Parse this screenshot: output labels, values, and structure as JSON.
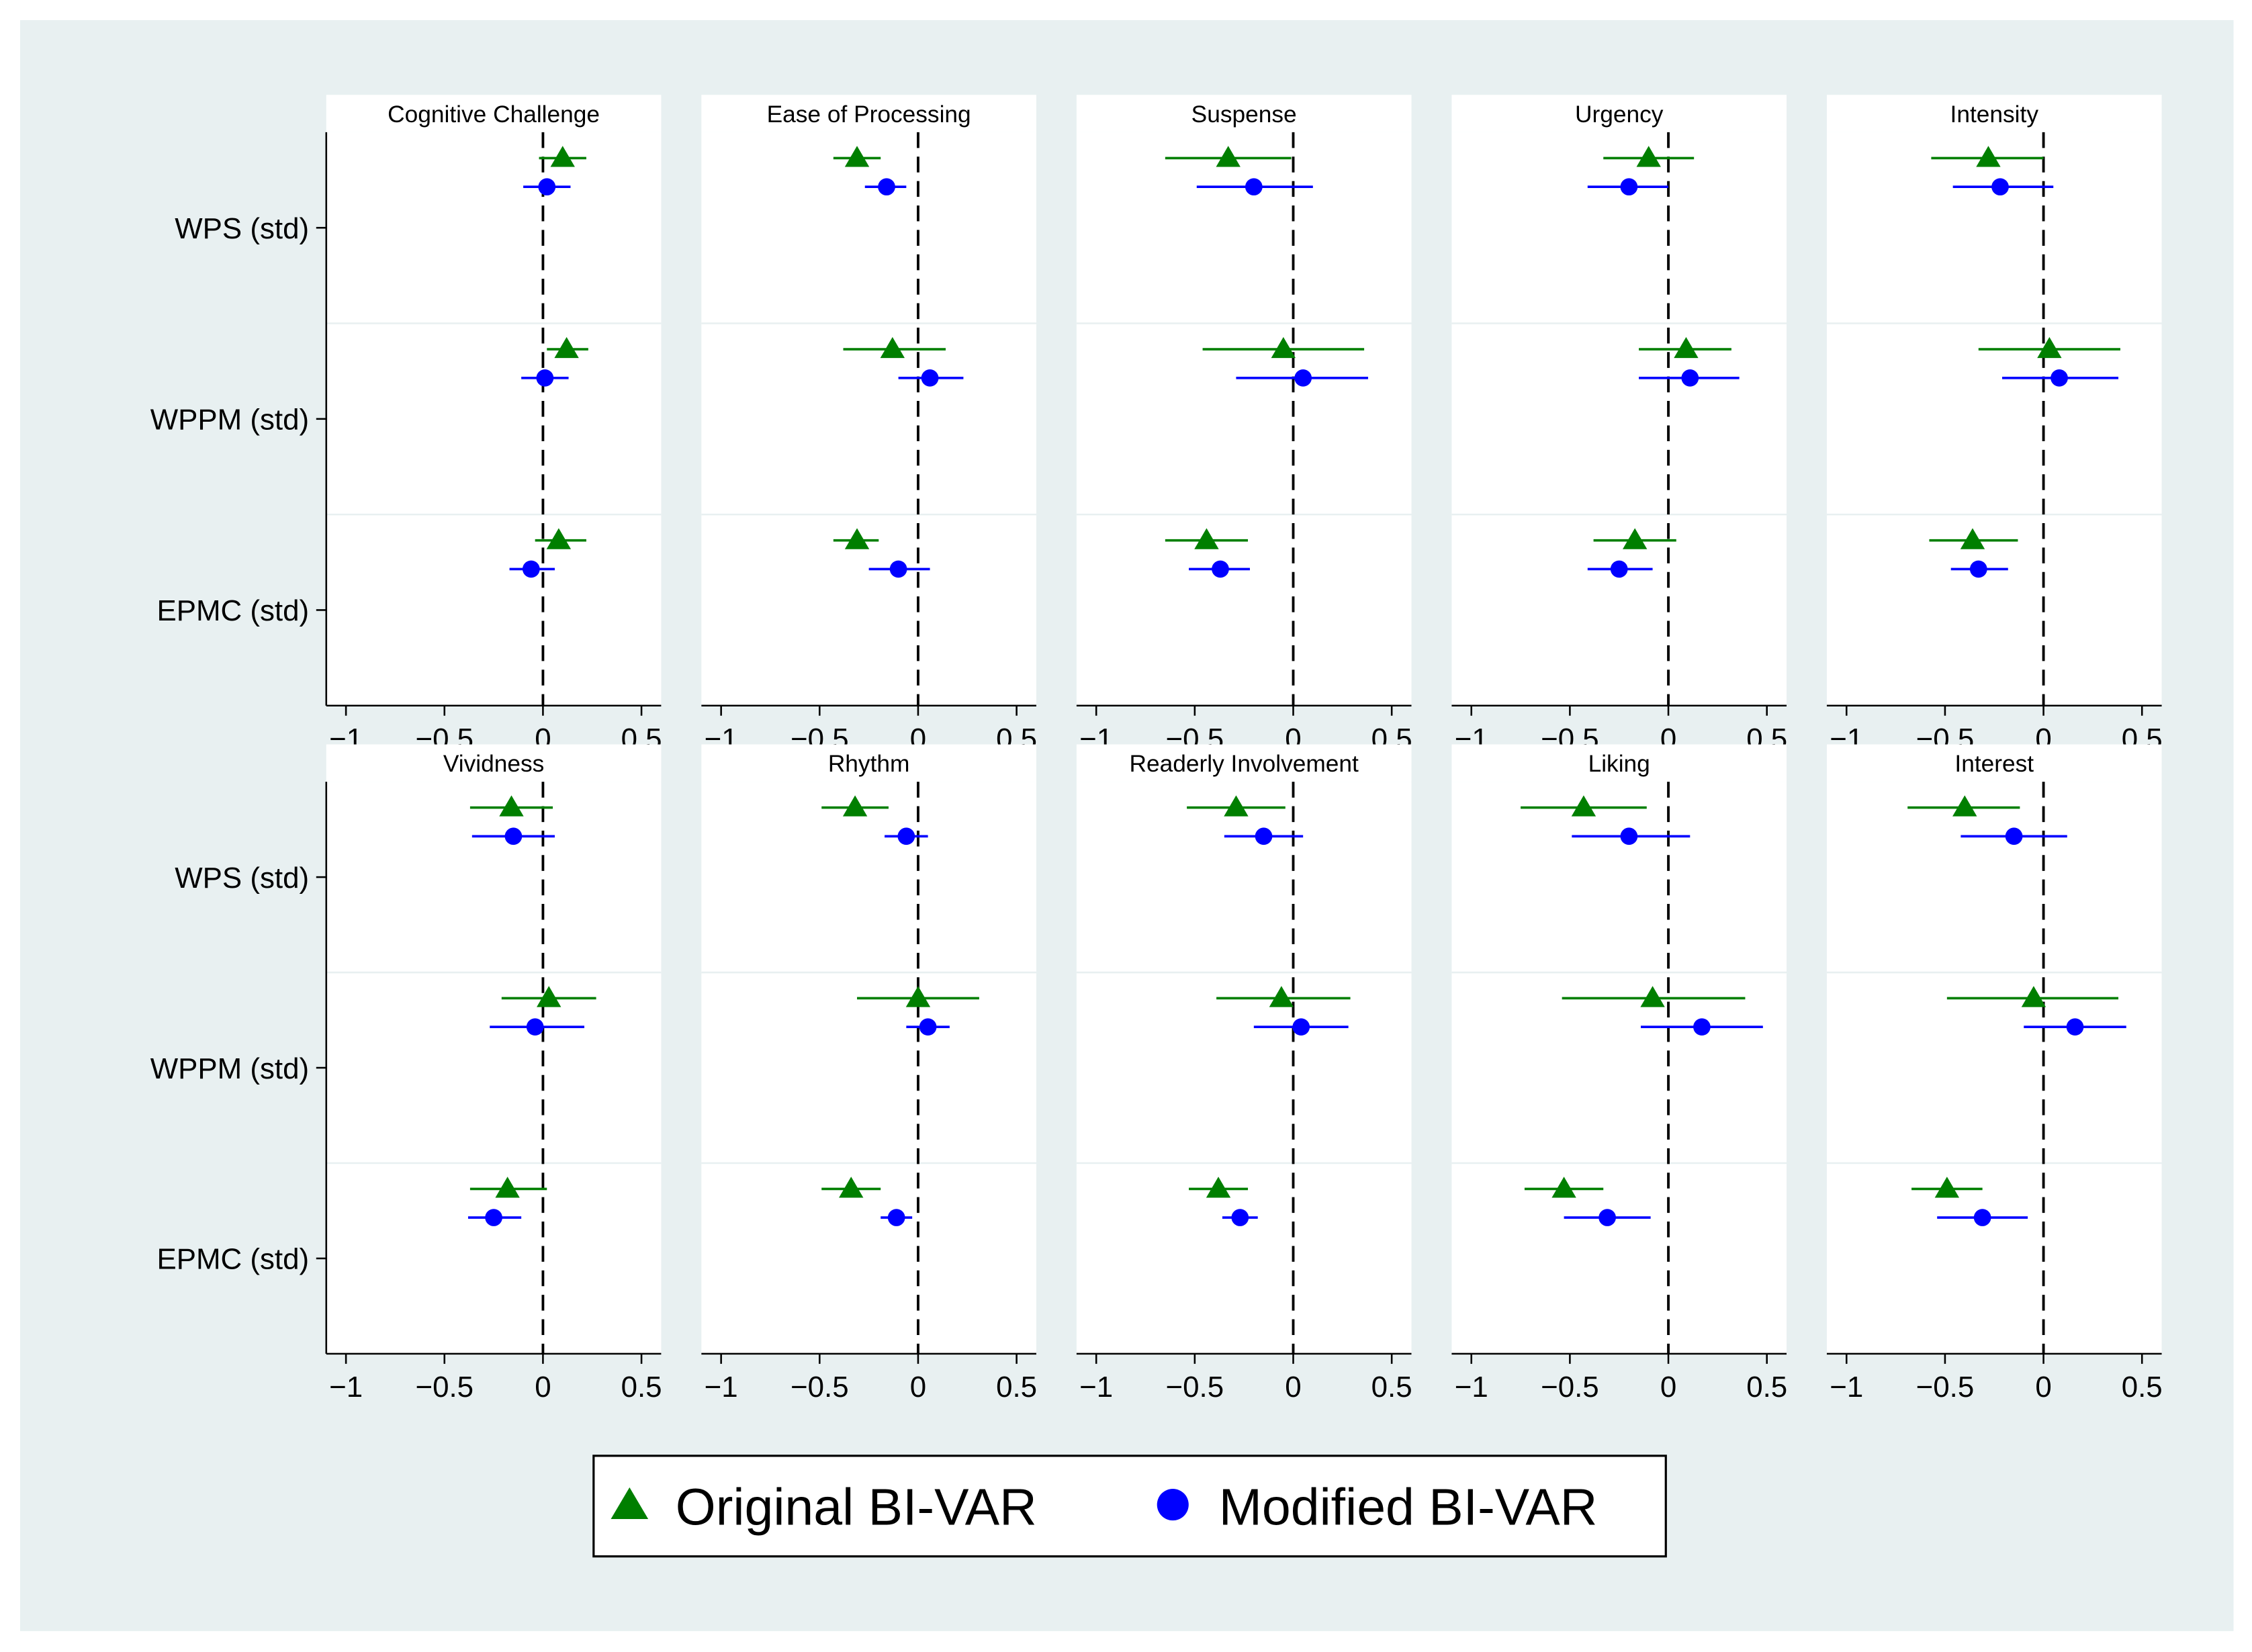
{
  "chart_data": {
    "type": "dot-whisker",
    "colors": {
      "background": "#e8f0f1",
      "panel": "#ffffff",
      "original": "#007f00",
      "modified": "#0000ff",
      "gridline": "#e8f0f1"
    },
    "rows": [
      "WPS (std)",
      "WPPM (std)",
      "EPMC (std)"
    ],
    "x_ticks": [
      -1,
      -0.5,
      0,
      0.5
    ],
    "x_tick_labels": [
      "−1",
      "−0.5",
      "0",
      "0.5"
    ],
    "xlim": [
      -1.1,
      0.6
    ],
    "reference_line": 0,
    "legend": {
      "entries": [
        {
          "label": "Original BI-VAR",
          "marker": "triangle",
          "color": "#007f00"
        },
        {
          "label": "Modified BI-VAR",
          "marker": "circle",
          "color": "#0000ff"
        }
      ],
      "placement": "bottom-center"
    },
    "panels": [
      {
        "title": "Cognitive Challenge",
        "original": [
          [
            0.1,
            -0.02,
            0.22
          ],
          [
            0.12,
            0.02,
            0.23
          ],
          [
            0.08,
            -0.04,
            0.22
          ]
        ],
        "modified": [
          [
            0.02,
            -0.1,
            0.14
          ],
          [
            0.01,
            -0.11,
            0.13
          ],
          [
            -0.06,
            -0.17,
            0.06
          ]
        ]
      },
      {
        "title": "Ease of Processing",
        "original": [
          [
            -0.31,
            -0.43,
            -0.19
          ],
          [
            -0.13,
            -0.38,
            0.14
          ],
          [
            -0.31,
            -0.43,
            -0.2
          ]
        ],
        "modified": [
          [
            -0.16,
            -0.27,
            -0.06
          ],
          [
            0.06,
            -0.1,
            0.23
          ],
          [
            -0.1,
            -0.25,
            0.06
          ]
        ]
      },
      {
        "title": "Suspense",
        "original": [
          [
            -0.33,
            -0.65,
            -0.01
          ],
          [
            -0.05,
            -0.46,
            0.36
          ],
          [
            -0.44,
            -0.65,
            -0.23
          ]
        ],
        "modified": [
          [
            -0.2,
            -0.49,
            0.1
          ],
          [
            0.05,
            -0.29,
            0.38
          ],
          [
            -0.37,
            -0.53,
            -0.22
          ]
        ]
      },
      {
        "title": "Urgency",
        "original": [
          [
            -0.1,
            -0.33,
            0.13
          ],
          [
            0.09,
            -0.15,
            0.32
          ],
          [
            -0.17,
            -0.38,
            0.04
          ]
        ],
        "modified": [
          [
            -0.2,
            -0.41,
            0.0
          ],
          [
            0.11,
            -0.15,
            0.36
          ],
          [
            -0.25,
            -0.41,
            -0.08
          ]
        ]
      },
      {
        "title": "Intensity",
        "original": [
          [
            -0.28,
            -0.57,
            0.0
          ],
          [
            0.03,
            -0.33,
            0.39
          ],
          [
            -0.36,
            -0.58,
            -0.13
          ]
        ],
        "modified": [
          [
            -0.22,
            -0.46,
            0.05
          ],
          [
            0.08,
            -0.21,
            0.38
          ],
          [
            -0.33,
            -0.47,
            -0.18
          ]
        ]
      },
      {
        "title": "Vividness",
        "original": [
          [
            -0.16,
            -0.37,
            0.05
          ],
          [
            0.03,
            -0.21,
            0.27
          ],
          [
            -0.18,
            -0.37,
            0.02
          ]
        ],
        "modified": [
          [
            -0.15,
            -0.36,
            0.06
          ],
          [
            -0.04,
            -0.27,
            0.21
          ],
          [
            -0.25,
            -0.38,
            -0.11
          ]
        ]
      },
      {
        "title": "Rhythm",
        "original": [
          [
            -0.32,
            -0.49,
            -0.15
          ],
          [
            0.0,
            -0.31,
            0.31
          ],
          [
            -0.34,
            -0.49,
            -0.19
          ]
        ],
        "modified": [
          [
            -0.06,
            -0.17,
            0.05
          ],
          [
            0.05,
            -0.06,
            0.16
          ],
          [
            -0.11,
            -0.19,
            -0.03
          ]
        ]
      },
      {
        "title": "Readerly Involvement",
        "original": [
          [
            -0.29,
            -0.54,
            -0.04
          ],
          [
            -0.06,
            -0.39,
            0.29
          ],
          [
            -0.38,
            -0.53,
            -0.23
          ]
        ],
        "modified": [
          [
            -0.15,
            -0.35,
            0.05
          ],
          [
            0.04,
            -0.2,
            0.28
          ],
          [
            -0.27,
            -0.36,
            -0.18
          ]
        ]
      },
      {
        "title": "Liking",
        "original": [
          [
            -0.43,
            -0.75,
            -0.11
          ],
          [
            -0.08,
            -0.54,
            0.39
          ],
          [
            -0.53,
            -0.73,
            -0.33
          ]
        ],
        "modified": [
          [
            -0.2,
            -0.49,
            0.11
          ],
          [
            0.17,
            -0.14,
            0.48
          ],
          [
            -0.31,
            -0.53,
            -0.09
          ]
        ]
      },
      {
        "title": "Interest",
        "original": [
          [
            -0.4,
            -0.69,
            -0.12
          ],
          [
            -0.05,
            -0.49,
            0.38
          ],
          [
            -0.49,
            -0.67,
            -0.31
          ]
        ],
        "modified": [
          [
            -0.15,
            -0.42,
            0.12
          ],
          [
            0.16,
            -0.1,
            0.42
          ],
          [
            -0.31,
            -0.54,
            -0.08
          ]
        ]
      }
    ]
  }
}
